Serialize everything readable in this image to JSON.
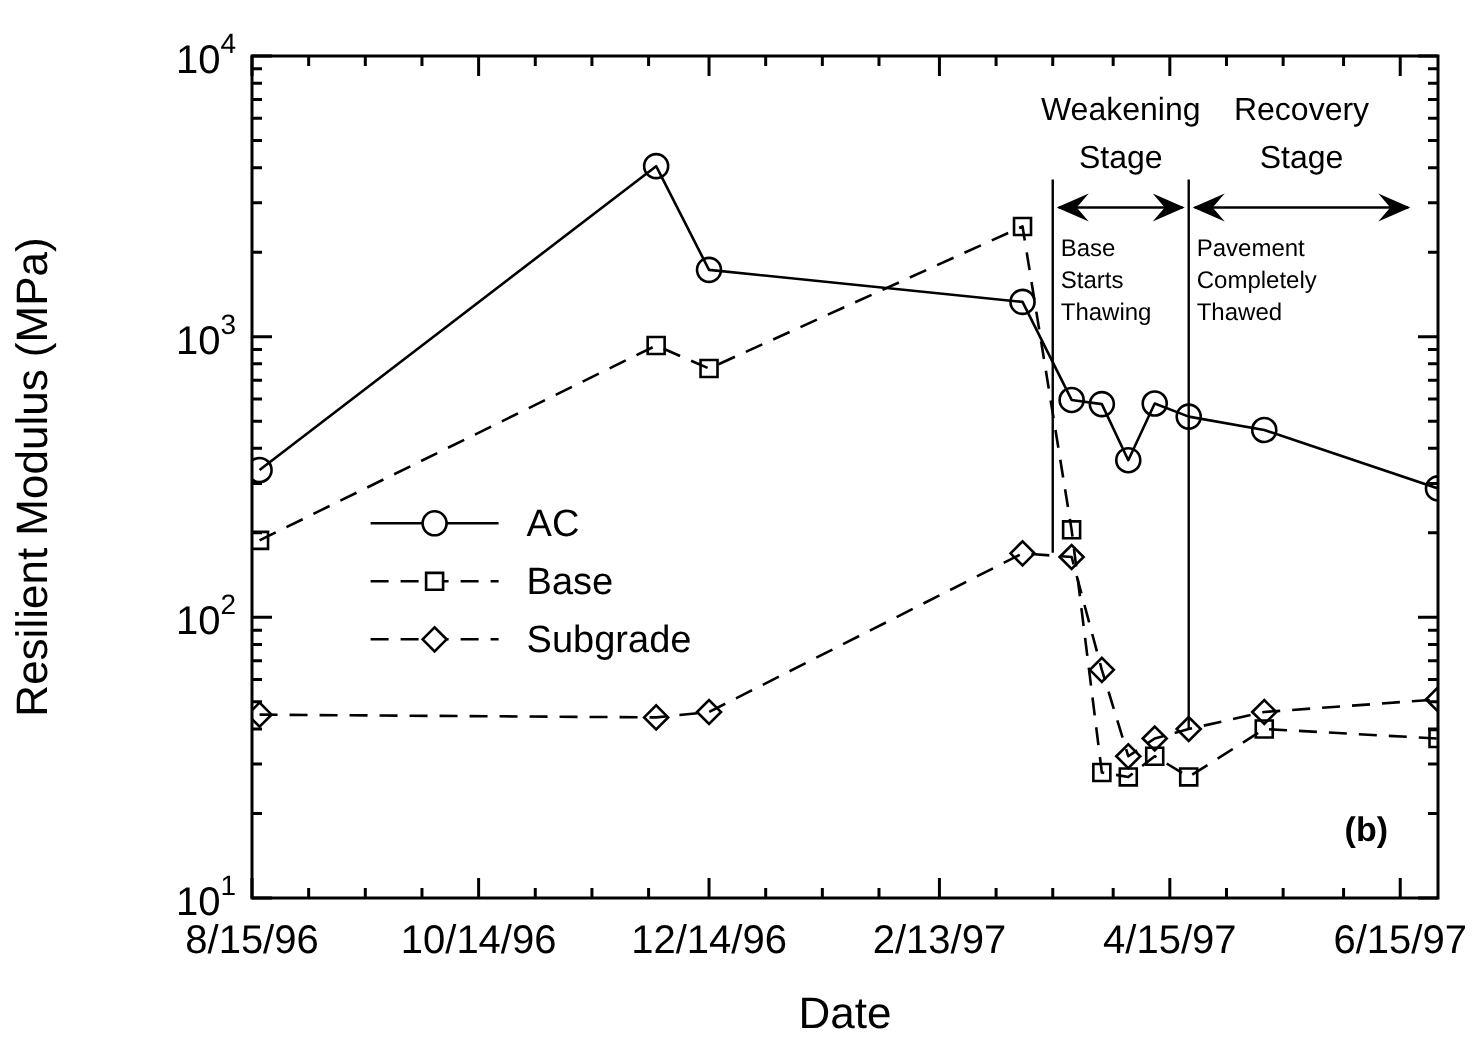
{
  "chart_data": {
    "type": "line",
    "xlabel": "Date",
    "ylabel": "Resilient Modulus (MPa)",
    "log": true,
    "xlim": [
      "1996-08-15",
      "1997-06-25"
    ],
    "xticks": [
      {
        "value": "1996-08-15",
        "label": "8/15/96"
      },
      {
        "value": "1996-08-30",
        "label": null
      },
      {
        "value": "1996-09-14",
        "label": null
      },
      {
        "value": "1996-09-29",
        "label": null
      },
      {
        "value": "1996-10-14",
        "label": "10/14/96"
      },
      {
        "value": "1996-10-29",
        "label": null
      },
      {
        "value": "1996-11-13",
        "label": null
      },
      {
        "value": "1996-11-28",
        "label": null
      },
      {
        "value": "1996-12-14",
        "label": "12/14/96"
      },
      {
        "value": "1996-12-29",
        "label": null
      },
      {
        "value": "1997-01-13",
        "label": null
      },
      {
        "value": "1997-01-28",
        "label": null
      },
      {
        "value": "1997-02-13",
        "label": "2/13/97"
      },
      {
        "value": "1997-02-28",
        "label": null
      },
      {
        "value": "1997-03-15",
        "label": null
      },
      {
        "value": "1997-03-31",
        "label": null
      },
      {
        "value": "1997-04-15",
        "label": "4/15/97"
      },
      {
        "value": "1997-04-30",
        "label": null
      },
      {
        "value": "1997-05-15",
        "label": null
      },
      {
        "value": "1997-05-31",
        "label": null
      },
      {
        "value": "1997-06-15",
        "label": "6/15/97"
      }
    ],
    "ylim": [
      10,
      10000
    ],
    "yticks": [
      {
        "value": 10,
        "label": "10$^{1}$"
      },
      {
        "value": 20,
        "label": null
      },
      {
        "value": 30,
        "label": null
      },
      {
        "value": 40,
        "label": null
      },
      {
        "value": 50,
        "label": null
      },
      {
        "value": 60,
        "label": null
      },
      {
        "value": 70,
        "label": null
      },
      {
        "value": 80,
        "label": null
      },
      {
        "value": 90,
        "label": null
      },
      {
        "value": 100,
        "label": "10$^{2}$"
      },
      {
        "value": 200,
        "label": null
      },
      {
        "value": 300,
        "label": null
      },
      {
        "value": 400,
        "label": null
      },
      {
        "value": 500,
        "label": null
      },
      {
        "value": 600,
        "label": null
      },
      {
        "value": 700,
        "label": null
      },
      {
        "value": 800,
        "label": null
      },
      {
        "value": 900,
        "label": null
      },
      {
        "value": 1000,
        "label": "10$^{3}$"
      },
      {
        "value": 2000,
        "label": null
      },
      {
        "value": 3000,
        "label": null
      },
      {
        "value": 4000,
        "label": null
      },
      {
        "value": 5000,
        "label": null
      },
      {
        "value": 6000,
        "label": null
      },
      {
        "value": 7000,
        "label": null
      },
      {
        "value": 8000,
        "label": null
      },
      {
        "value": 9000,
        "label": null
      },
      {
        "value": 10000,
        "label": "10$^{4}$"
      }
    ],
    "x": [
      "1996-08-17",
      "1996-11-30",
      "1996-12-14",
      "1997-03-07",
      "1997-03-20",
      "1997-03-28",
      "1997-04-04",
      "1997-04-11",
      "1997-04-20",
      "1997-05-10",
      "1997-06-25"
    ],
    "series": [
      {
        "name": "AC",
        "color": "#000000",
        "marker": "circle",
        "line_style": "solid",
        "values": [
          335,
          4050,
          1730,
          1330,
          595,
          575,
          363,
          578,
          519,
          465,
          288
        ]
      },
      {
        "name": "Base",
        "color": "#000000",
        "marker": "square",
        "line_style": "dashed",
        "values": [
          188,
          930,
          770,
          2470,
          205,
          28,
          27,
          32,
          27,
          40,
          37
        ]
      },
      {
        "name": "Subgrade",
        "color": "#000000",
        "marker": "diamond",
        "line_style": "dashed",
        "values": [
          45,
          44,
          46,
          169,
          164,
          65,
          32,
          37,
          40,
          46,
          51
        ]
      }
    ],
    "legend": "left",
    "ref_lines": [
      {
        "axis": "x",
        "value": "1997-03-15"
      },
      {
        "axis": "x",
        "value": "1997-04-20"
      }
    ],
    "annotations": [
      "Weakening Stage",
      "Recovery Stage",
      "Base Starts Thawing",
      "Pavement Completely Thawed",
      "(b)"
    ]
  }
}
